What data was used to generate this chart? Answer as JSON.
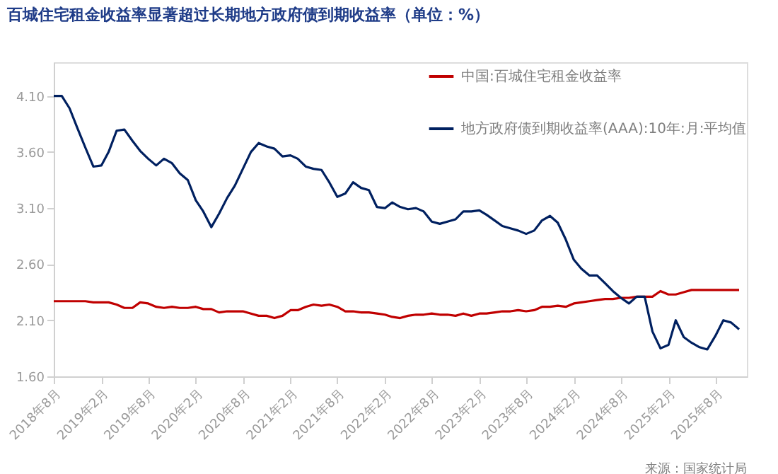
{
  "chart_data": {
    "type": "line",
    "title": "百城住宅租金收益率显著超过长期地方政府债到期收益率（单位：%）",
    "x": [
      "2018-08",
      "2018-09",
      "2018-10",
      "2018-11",
      "2018-12",
      "2019-01",
      "2019-02",
      "2019-03",
      "2019-04",
      "2019-05",
      "2019-06",
      "2019-07",
      "2019-08",
      "2019-09",
      "2019-10",
      "2019-11",
      "2019-12",
      "2020-01",
      "2020-02",
      "2020-03",
      "2020-04",
      "2020-05",
      "2020-06",
      "2020-07",
      "2020-08",
      "2020-09",
      "2020-10",
      "2020-11",
      "2020-12",
      "2021-01",
      "2021-02",
      "2021-03",
      "2021-04",
      "2021-05",
      "2021-06",
      "2021-07",
      "2021-08",
      "2021-09",
      "2021-10",
      "2021-11",
      "2021-12",
      "2022-01",
      "2022-02",
      "2022-03",
      "2022-04",
      "2022-05",
      "2022-06",
      "2022-07",
      "2022-08",
      "2022-09",
      "2022-10",
      "2022-11",
      "2022-12",
      "2023-01",
      "2023-02",
      "2023-03",
      "2023-04",
      "2023-05",
      "2023-06",
      "2023-07",
      "2023-08",
      "2023-09",
      "2023-10",
      "2023-11",
      "2023-12",
      "2024-01",
      "2024-02",
      "2024-03",
      "2024-04",
      "2024-05",
      "2024-06",
      "2024-07",
      "2024-08",
      "2024-09",
      "2024-10",
      "2024-11",
      "2024-12",
      "2025-01",
      "2025-02",
      "2025-03",
      "2025-04",
      "2025-05",
      "2025-06",
      "2025-07",
      "2025-08",
      "2025-09",
      "2025-10",
      "2025-11"
    ],
    "series": [
      {
        "name": "中国:百城住宅租金收益率",
        "color": "#c00000",
        "values": [
          2.27,
          2.27,
          2.27,
          2.27,
          2.27,
          2.26,
          2.26,
          2.26,
          2.24,
          2.21,
          2.21,
          2.26,
          2.25,
          2.22,
          2.21,
          2.22,
          2.21,
          2.21,
          2.22,
          2.2,
          2.2,
          2.17,
          2.18,
          2.18,
          2.18,
          2.16,
          2.14,
          2.14,
          2.12,
          2.14,
          2.19,
          2.19,
          2.22,
          2.24,
          2.23,
          2.24,
          2.22,
          2.18,
          2.18,
          2.17,
          2.17,
          2.16,
          2.15,
          2.13,
          2.12,
          2.14,
          2.15,
          2.15,
          2.16,
          2.15,
          2.15,
          2.14,
          2.16,
          2.14,
          2.16,
          2.16,
          2.17,
          2.18,
          2.18,
          2.19,
          2.18,
          2.19,
          2.22,
          2.22,
          2.23,
          2.22,
          2.25,
          2.26,
          2.27,
          2.28,
          2.29,
          2.29,
          2.3,
          2.3,
          2.31,
          2.31,
          2.31,
          2.36,
          2.33,
          2.33,
          2.35,
          2.37,
          2.37,
          2.37,
          2.37,
          2.37,
          2.37,
          2.37
        ]
      },
      {
        "name": "地方政府债到期收益率(AAA):10年:月:平均值",
        "color": "#002060",
        "values": [
          4.1,
          4.1,
          3.99,
          3.81,
          3.64,
          3.47,
          3.48,
          3.6,
          3.79,
          3.8,
          3.7,
          3.61,
          3.54,
          3.48,
          3.54,
          3.5,
          3.41,
          3.35,
          3.17,
          3.07,
          2.93,
          3.05,
          3.19,
          3.3,
          3.45,
          3.6,
          3.68,
          3.65,
          3.63,
          3.56,
          3.57,
          3.54,
          3.47,
          3.45,
          3.44,
          3.33,
          3.2,
          3.23,
          3.33,
          3.28,
          3.26,
          3.11,
          3.1,
          3.15,
          3.11,
          3.09,
          3.1,
          3.07,
          2.98,
          2.96,
          2.98,
          3.0,
          3.07,
          3.07,
          3.08,
          3.04,
          2.99,
          2.94,
          2.92,
          2.9,
          2.87,
          2.9,
          2.99,
          3.03,
          2.97,
          2.82,
          2.64,
          2.56,
          2.5,
          2.5,
          2.43,
          2.36,
          2.3,
          2.25,
          2.31,
          2.31,
          2.0,
          1.85,
          1.88,
          2.1,
          1.95,
          1.9,
          1.86,
          1.84,
          1.96,
          2.1,
          2.08,
          2.02
        ]
      }
    ],
    "xlim": [
      "2018-08",
      "2025-12"
    ],
    "xticks": [
      {
        "value": "2018-08",
        "label": "2018年8月"
      },
      {
        "value": "2019-02",
        "label": "2019年2月"
      },
      {
        "value": "2019-08",
        "label": "2019年8月"
      },
      {
        "value": "2020-02",
        "label": "2020年2月"
      },
      {
        "value": "2020-08",
        "label": "2020年8月"
      },
      {
        "value": "2021-02",
        "label": "2021年2月"
      },
      {
        "value": "2021-08",
        "label": "2021年8月"
      },
      {
        "value": "2022-02",
        "label": "2022年2月"
      },
      {
        "value": "2022-08",
        "label": "2022年8月"
      },
      {
        "value": "2023-02",
        "label": "2023年2月"
      },
      {
        "value": "2023-08",
        "label": "2023年8月"
      },
      {
        "value": "2024-02",
        "label": "2024年2月"
      },
      {
        "value": "2024-08",
        "label": "2024年8月"
      },
      {
        "value": "2025-02",
        "label": "2025年2月"
      },
      {
        "value": "2025-08",
        "label": "2025年8月"
      }
    ],
    "ylim": [
      1.6,
      4.4
    ],
    "yticks": [
      {
        "value": 1.6,
        "label": "1.60"
      },
      {
        "value": 2.1,
        "label": "2.10"
      },
      {
        "value": 2.6,
        "label": "2.60"
      },
      {
        "value": 3.1,
        "label": "3.10"
      },
      {
        "value": 3.6,
        "label": "3.60"
      },
      {
        "value": 4.1,
        "label": "4.10"
      }
    ],
    "grid": false,
    "legend": "top right",
    "line_style": "solid",
    "annotations": [
      "来源：国家统计局"
    ]
  }
}
